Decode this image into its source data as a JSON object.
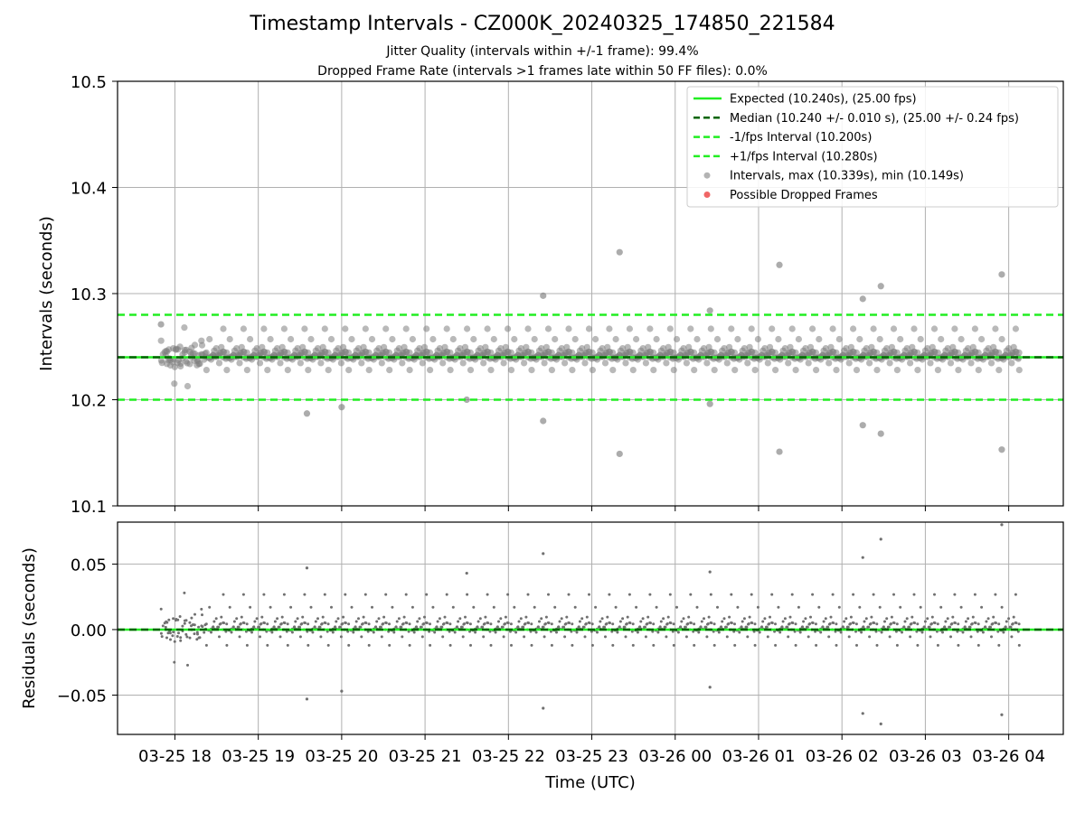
{
  "chart_data": [
    {
      "type": "scatter",
      "title": "Timestamp Intervals - CZ000K_20240325_174850_221584",
      "subtitle_lines": [
        "Jitter Quality (intervals within +/-1 frame): 99.4%",
        "Dropped Frame Rate (intervals >1 frames late within 50 FF files): 0.0%"
      ],
      "xlabel": "",
      "ylabel": "Intervals (seconds)",
      "ylim": [
        10.1,
        10.5
      ],
      "yticks": [
        "10.1",
        "10.2",
        "10.3",
        "10.4",
        "10.5"
      ],
      "grid": true,
      "legend_position": "top-right",
      "legend": [
        "Expected (10.240s), (25.00 fps)",
        "Median (10.240 +/- 0.010 s), (25.00 +/- 0.24 fps)",
        "-1/fps Interval (10.200s)",
        "+1/fps Interval (10.280s)",
        "Intervals, max (10.339s), min (10.149s)",
        "Possible Dropped Frames"
      ],
      "reference_lines": [
        {
          "name": "Expected",
          "y": 10.24,
          "color": "#22ee22",
          "style": "solid"
        },
        {
          "name": "Median",
          "y": 10.24,
          "color": "#006400",
          "style": "dashed"
        },
        {
          "name": "-1/fps Interval",
          "y": 10.2,
          "color": "#22ee22",
          "style": "dashed"
        },
        {
          "name": "+1/fps Interval",
          "y": 10.28,
          "color": "#22ee22",
          "style": "dashed"
        }
      ],
      "series": [
        {
          "name": "Intervals",
          "color": "#808080",
          "typical_value": 10.24,
          "typical_spread": 0.01,
          "notable_points": [
            {
              "x": "2024-03-25 17:50",
              "y": 10.271
            },
            {
              "x": "2024-03-25 19:35",
              "y": 10.187
            },
            {
              "x": "2024-03-25 20:00",
              "y": 10.193
            },
            {
              "x": "2024-03-25 21:30",
              "y": 10.2
            },
            {
              "x": "2024-03-25 22:25",
              "y": 10.298
            },
            {
              "x": "2024-03-25 22:25",
              "y": 10.18
            },
            {
              "x": "2024-03-25 23:20",
              "y": 10.339
            },
            {
              "x": "2024-03-25 23:20",
              "y": 10.149
            },
            {
              "x": "2024-03-26 00:25",
              "y": 10.284
            },
            {
              "x": "2024-03-26 00:25",
              "y": 10.196
            },
            {
              "x": "2024-03-26 01:15",
              "y": 10.327
            },
            {
              "x": "2024-03-26 01:15",
              "y": 10.151
            },
            {
              "x": "2024-03-26 02:15",
              "y": 10.295
            },
            {
              "x": "2024-03-26 02:15",
              "y": 10.176
            },
            {
              "x": "2024-03-26 02:28",
              "y": 10.307
            },
            {
              "x": "2024-03-26 02:28",
              "y": 10.168
            },
            {
              "x": "2024-03-26 03:55",
              "y": 10.318
            },
            {
              "x": "2024-03-26 03:55",
              "y": 10.153
            }
          ]
        },
        {
          "name": "Possible Dropped Frames",
          "color": "#ee5555",
          "values": []
        }
      ]
    },
    {
      "type": "scatter",
      "xlabel": "Time (UTC)",
      "ylabel": "Residuals (seconds)",
      "ylim": [
        -0.08,
        0.082
      ],
      "yticks": [
        "−0.05",
        "0.00",
        "0.05"
      ],
      "xticks": [
        "03-25 18",
        "03-25 19",
        "03-25 20",
        "03-25 21",
        "03-25 22",
        "03-25 23",
        "03-26 00",
        "03-26 01",
        "03-26 02",
        "03-26 03",
        "03-26 04"
      ],
      "xrange": [
        "2024-03-25 17:48",
        "2024-03-26 04:10"
      ],
      "grid": true,
      "reference_lines": [
        {
          "y": 0.0,
          "color": "#22ee22",
          "style": "solid"
        },
        {
          "y": 0.0,
          "color": "#006400",
          "style": "dashed"
        }
      ],
      "series": [
        {
          "name": "Residuals",
          "color": "#707070",
          "typical_spread": 0.01,
          "notable_points": [
            {
              "x": "2024-03-25 19:35",
              "y": 0.047
            },
            {
              "x": "2024-03-25 19:35",
              "y": -0.053
            },
            {
              "x": "2024-03-25 20:00",
              "y": -0.047
            },
            {
              "x": "2024-03-25 21:30",
              "y": 0.043
            },
            {
              "x": "2024-03-25 22:25",
              "y": 0.058
            },
            {
              "x": "2024-03-25 22:25",
              "y": -0.06
            },
            {
              "x": "2024-03-26 00:25",
              "y": 0.044
            },
            {
              "x": "2024-03-26 00:25",
              "y": -0.044
            },
            {
              "x": "2024-03-26 02:15",
              "y": 0.055
            },
            {
              "x": "2024-03-26 02:15",
              "y": -0.064
            },
            {
              "x": "2024-03-26 02:28",
              "y": 0.069
            },
            {
              "x": "2024-03-26 02:28",
              "y": -0.072
            },
            {
              "x": "2024-03-26 03:55",
              "y": 0.08
            },
            {
              "x": "2024-03-26 03:55",
              "y": -0.065
            }
          ]
        }
      ]
    }
  ]
}
